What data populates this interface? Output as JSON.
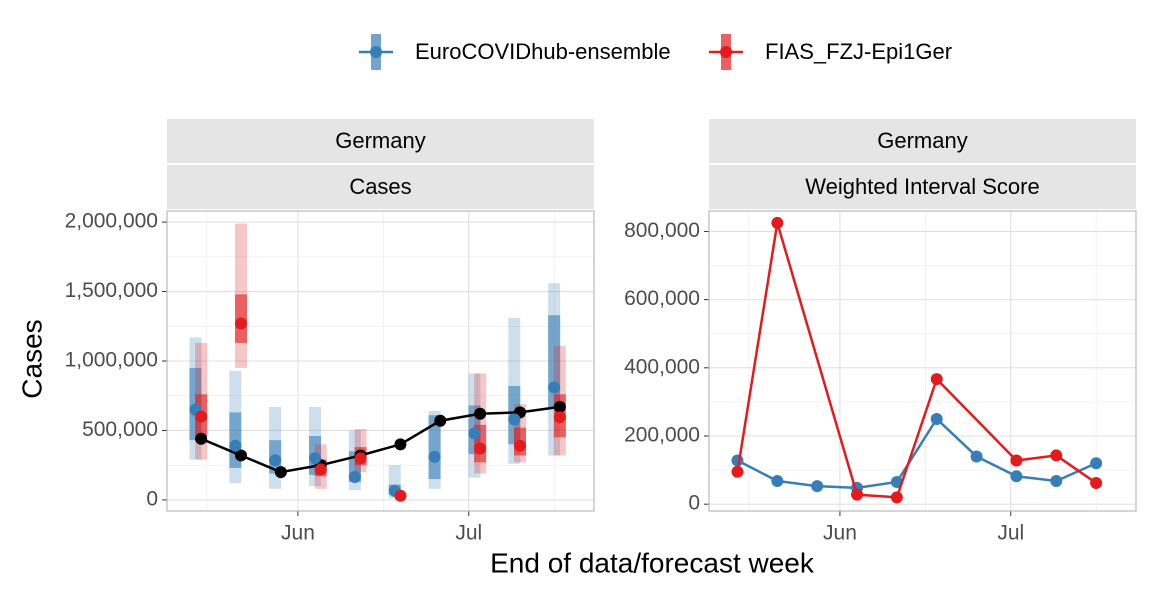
{
  "legend": {
    "position": "top",
    "items": [
      {
        "label": "EuroCOVIDhub-ensemble",
        "color": "#377EB8"
      },
      {
        "label": "FIAS_FZJ-Epi1Ger",
        "color": "#E41A1C"
      }
    ]
  },
  "shared_xlabel": "End of data/forecast week",
  "colors": {
    "ensemble": "#377EB8",
    "fias": "#E41A1C",
    "truth": "#000000",
    "strip_bg": "#E5E5E5",
    "grid": "#E0E0E0",
    "panel_border": "#B3B3B3"
  },
  "chart_data": [
    {
      "type": "line",
      "panel": "forecasts",
      "strip_labels": [
        "Germany",
        "Cases"
      ],
      "ylabel": "Cases",
      "x_ticks": [
        "Jun",
        "Jul"
      ],
      "x_tick_dates": [
        "2021-06-01",
        "2021-07-01"
      ],
      "xlim": [
        "2021-05-09",
        "2021-07-23"
      ],
      "ylim": [
        -80000,
        2080000
      ],
      "y_ticks": [
        0,
        500000,
        1000000,
        1500000,
        2000000
      ],
      "y_tick_labels": [
        "0",
        "500,000",
        "1,000,000",
        "1,500,000",
        "2,000,000"
      ],
      "grid": true,
      "truth": {
        "dates": [
          "2021-05-15",
          "2021-05-22",
          "2021-05-29",
          "2021-06-05",
          "2021-06-12",
          "2021-06-19",
          "2021-06-26",
          "2021-07-03",
          "2021-07-10",
          "2021-07-17"
        ],
        "values": [
          440000,
          320000,
          200000,
          250000,
          320000,
          400000,
          570000,
          620000,
          630000,
          670000
        ]
      },
      "series": [
        {
          "name": "EuroCOVIDhub-ensemble",
          "dates": [
            "2021-05-14",
            "2021-05-21",
            "2021-05-28",
            "2021-06-04",
            "2021-06-11",
            "2021-06-18",
            "2021-06-25",
            "2021-07-02",
            "2021-07-09",
            "2021-07-16"
          ],
          "median": [
            650000,
            390000,
            285000,
            300000,
            165000,
            65000,
            310000,
            480000,
            580000,
            810000
          ],
          "inner_lower": [
            430000,
            230000,
            190000,
            180000,
            130000,
            35000,
            150000,
            330000,
            400000,
            660000
          ],
          "inner_upper": [
            950000,
            630000,
            430000,
            460000,
            350000,
            110000,
            610000,
            680000,
            820000,
            1330000
          ],
          "outer_lower": [
            290000,
            120000,
            80000,
            100000,
            70000,
            10000,
            80000,
            160000,
            260000,
            320000
          ],
          "outer_upper": [
            1170000,
            930000,
            670000,
            670000,
            500000,
            250000,
            640000,
            910000,
            1310000,
            1560000
          ]
        },
        {
          "name": "FIAS_FZJ-Epi1Ger",
          "dates": [
            "2021-05-15",
            "2021-05-22",
            "2021-06-05",
            "2021-06-12",
            "2021-06-19",
            "2021-07-03",
            "2021-07-10",
            "2021-07-17"
          ],
          "median": [
            600000,
            1270000,
            220000,
            300000,
            30000,
            370000,
            390000,
            595000
          ],
          "inner_lower": [
            460000,
            1130000,
            170000,
            250000,
            25000,
            270000,
            320000,
            450000
          ],
          "inner_upper": [
            760000,
            1480000,
            290000,
            380000,
            40000,
            540000,
            520000,
            760000
          ],
          "outer_lower": [
            290000,
            950000,
            80000,
            200000,
            20000,
            190000,
            270000,
            320000
          ],
          "outer_upper": [
            1130000,
            1990000,
            400000,
            510000,
            50000,
            910000,
            690000,
            1110000
          ]
        }
      ]
    },
    {
      "type": "line",
      "panel": "scores",
      "strip_labels": [
        "Germany",
        "Weighted Interval Score"
      ],
      "ylabel": "",
      "x_ticks": [
        "Jun",
        "Jul"
      ],
      "x_tick_dates": [
        "2021-06-01",
        "2021-07-01"
      ],
      "xlim": [
        "2021-05-09",
        "2021-07-23"
      ],
      "ylim": [
        -20000,
        860000
      ],
      "y_ticks": [
        0,
        200000,
        400000,
        600000,
        800000
      ],
      "y_tick_labels": [
        "0",
        "200,000",
        "400,000",
        "600,000",
        "800,000"
      ],
      "grid": true,
      "series": [
        {
          "name": "EuroCOVIDhub-ensemble",
          "dates": [
            "2021-05-14",
            "2021-05-21",
            "2021-05-28",
            "2021-06-04",
            "2021-06-11",
            "2021-06-18",
            "2021-06-25",
            "2021-07-02",
            "2021-07-09",
            "2021-07-16"
          ],
          "values": [
            128000,
            68000,
            53000,
            48000,
            65000,
            250000,
            140000,
            82000,
            68000,
            120000
          ]
        },
        {
          "name": "FIAS_FZJ-Epi1Ger",
          "dates": [
            "2021-05-14",
            "2021-05-21",
            "2021-06-04",
            "2021-06-11",
            "2021-06-18",
            "2021-07-02",
            "2021-07-09",
            "2021-07-16"
          ],
          "values": [
            95000,
            825000,
            28000,
            20000,
            367000,
            128000,
            143000,
            62000
          ]
        }
      ]
    }
  ]
}
